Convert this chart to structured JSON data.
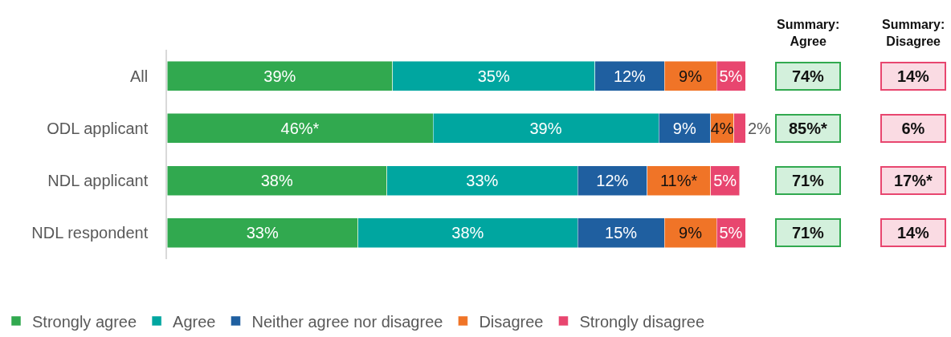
{
  "chart_data": {
    "type": "bar",
    "orientation": "horizontal",
    "stacked": true,
    "categories": [
      "All",
      "ODL applicant",
      "NDL applicant",
      "NDL respondent"
    ],
    "xlim": [
      0,
      100
    ],
    "tick_labels": "y",
    "legend": "bottom left",
    "data_labels": true,
    "series": [
      {
        "name": "Strongly agree",
        "color": "#31a94f",
        "values": [
          39,
          46,
          38,
          33
        ],
        "value_labels": [
          "39%",
          "46%*",
          "38%",
          "33%"
        ]
      },
      {
        "name": "Agree",
        "color": "#00a6a0",
        "values": [
          35,
          39,
          33,
          38
        ],
        "value_labels": [
          "35%",
          "39%",
          "33%",
          "38%"
        ]
      },
      {
        "name": "Neither agree nor disagree",
        "color": "#1f5fa0",
        "values": [
          12,
          9,
          12,
          15
        ],
        "value_labels": [
          "12%",
          "9%",
          "12%",
          "15%"
        ]
      },
      {
        "name": "Disagree",
        "color": "#f07427",
        "values": [
          9,
          4,
          11,
          9
        ],
        "value_labels": [
          "9%",
          "4%",
          "11%*",
          "9%"
        ]
      },
      {
        "name": "Strongly disagree",
        "color": "#e8466f",
        "values": [
          5,
          2,
          5,
          5
        ],
        "value_labels": [
          "5%",
          "2%",
          "5%",
          "5%"
        ]
      }
    ],
    "annotations": [
      "Summary:\nAgree",
      "Summary:\nDisagree",
      "74%",
      "14%",
      "85%*",
      "6%",
      "71%",
      "17%*",
      "71%",
      "14%"
    ]
  }
}
